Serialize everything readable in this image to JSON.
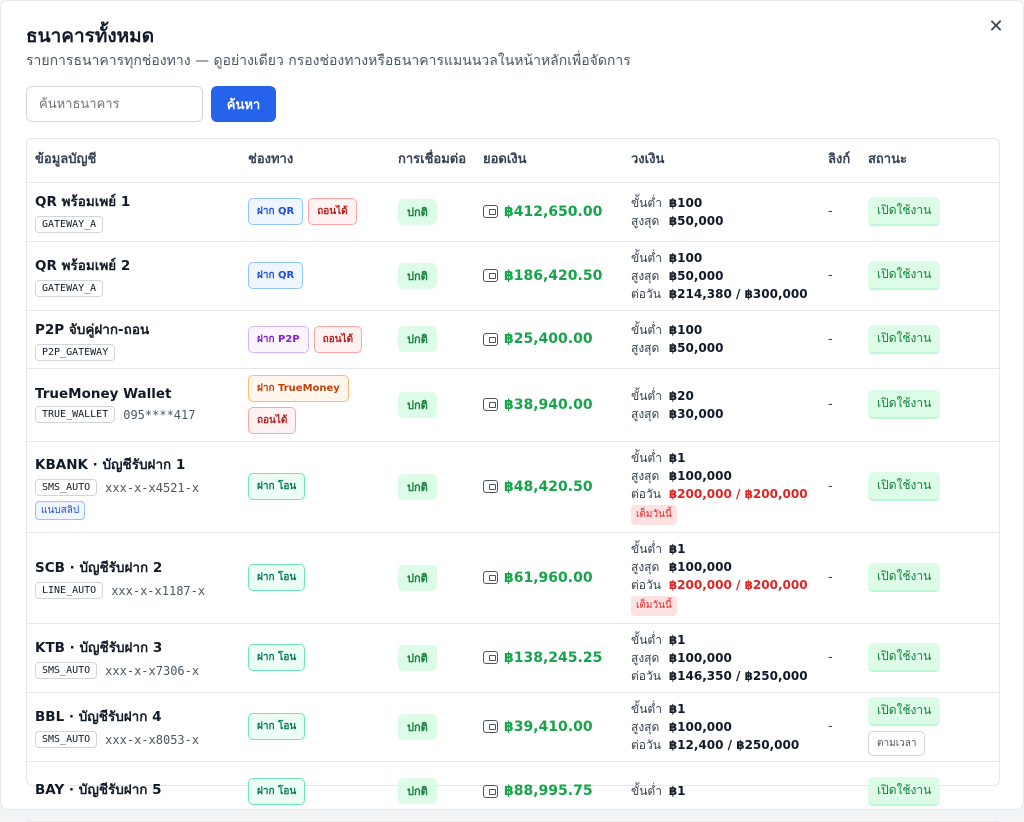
{
  "modal": {
    "title": "ธนาคารทั้งหมด",
    "subtitle": "รายการธนาคารทุกช่องทาง — ดูอย่างเดียว กรองช่องทางหรือธนาคารแมนนวลในหน้าหลักเพื่อจัดการ",
    "close_icon": "close-icon"
  },
  "search": {
    "placeholder": "ค้นหาธนาคาร",
    "value": "",
    "button_label": "ค้นหา"
  },
  "table": {
    "headers": [
      "ข้อมูลบัญชี",
      "ช่องทาง",
      "การเชื่อมต่อ",
      "ยอดเงิน",
      "วงเงิน",
      "ลิงก์",
      "สถานะ"
    ],
    "rows": [
      {
        "name": "QR พร้อมเพย์ 1",
        "gateway": "GATEWAY_A",
        "account": "",
        "slip": "",
        "channels": [
          {
            "label": "ฝาก QR",
            "kind": "qr"
          },
          {
            "label": "ถอนได้",
            "kind": "wd"
          }
        ],
        "connection": "ปกติ",
        "balance": "฿412,650.00",
        "min_label": "ขั้นต่ำ",
        "min": "฿100",
        "max_label": "สูงสุด",
        "max": "฿50,000",
        "daily_label": "",
        "daily": "",
        "daily_full": false,
        "full_label": "",
        "link": "-",
        "status": "เปิดใช้งาน",
        "schedule": ""
      },
      {
        "name": "QR พร้อมเพย์ 2",
        "gateway": "GATEWAY_A",
        "account": "",
        "slip": "",
        "channels": [
          {
            "label": "ฝาก QR",
            "kind": "qr"
          }
        ],
        "connection": "ปกติ",
        "balance": "฿186,420.50",
        "min_label": "ขั้นต่ำ",
        "min": "฿100",
        "max_label": "สูงสุด",
        "max": "฿50,000",
        "daily_label": "ต่อวัน",
        "daily": "฿214,380 / ฿300,000",
        "daily_full": false,
        "full_label": "",
        "link": "-",
        "status": "เปิดใช้งาน",
        "schedule": ""
      },
      {
        "name": "P2P จับคู่ฝาก-ถอน",
        "gateway": "P2P_GATEWAY",
        "account": "",
        "slip": "",
        "channels": [
          {
            "label": "ฝาก P2P",
            "kind": "p2p"
          },
          {
            "label": "ถอนได้",
            "kind": "wd"
          }
        ],
        "connection": "ปกติ",
        "balance": "฿25,400.00",
        "min_label": "ขั้นต่ำ",
        "min": "฿100",
        "max_label": "สูงสุด",
        "max": "฿50,000",
        "daily_label": "",
        "daily": "",
        "daily_full": false,
        "full_label": "",
        "link": "-",
        "status": "เปิดใช้งาน",
        "schedule": ""
      },
      {
        "name": "TrueMoney Wallet",
        "gateway": "TRUE_WALLET",
        "account": "095****417",
        "slip": "",
        "channels": [
          {
            "label": "ฝาก TrueMoney",
            "kind": "tm"
          },
          {
            "label": "ถอนได้",
            "kind": "wd"
          }
        ],
        "connection": "ปกติ",
        "balance": "฿38,940.00",
        "min_label": "ขั้นต่ำ",
        "min": "฿20",
        "max_label": "สูงสุด",
        "max": "฿30,000",
        "daily_label": "",
        "daily": "",
        "daily_full": false,
        "full_label": "",
        "link": "-",
        "status": "เปิดใช้งาน",
        "schedule": ""
      },
      {
        "name": "KBANK · บัญชีรับฝาก 1",
        "gateway": "SMS_AUTO",
        "account": "xxx-x-x4521-x",
        "slip": "แนบสลิป",
        "channels": [
          {
            "label": "ฝาก โอน",
            "kind": "tf"
          }
        ],
        "connection": "ปกติ",
        "balance": "฿48,420.50",
        "min_label": "ขั้นต่ำ",
        "min": "฿1",
        "max_label": "สูงสุด",
        "max": "฿100,000",
        "daily_label": "ต่อวัน",
        "daily": "฿200,000 / ฿200,000",
        "daily_full": true,
        "full_label": "เต็มวันนี้",
        "link": "-",
        "status": "เปิดใช้งาน",
        "schedule": ""
      },
      {
        "name": "SCB · บัญชีรับฝาก 2",
        "gateway": "LINE_AUTO",
        "account": "xxx-x-x1187-x",
        "slip": "",
        "channels": [
          {
            "label": "ฝาก โอน",
            "kind": "tf"
          }
        ],
        "connection": "ปกติ",
        "balance": "฿61,960.00",
        "min_label": "ขั้นต่ำ",
        "min": "฿1",
        "max_label": "สูงสุด",
        "max": "฿100,000",
        "daily_label": "ต่อวัน",
        "daily": "฿200,000 / ฿200,000",
        "daily_full": true,
        "full_label": "เต็มวันนี้",
        "link": "-",
        "status": "เปิดใช้งาน",
        "schedule": ""
      },
      {
        "name": "KTB · บัญชีรับฝาก 3",
        "gateway": "SMS_AUTO",
        "account": "xxx-x-x7306-x",
        "slip": "",
        "channels": [
          {
            "label": "ฝาก โอน",
            "kind": "tf"
          }
        ],
        "connection": "ปกติ",
        "balance": "฿138,245.25",
        "min_label": "ขั้นต่ำ",
        "min": "฿1",
        "max_label": "สูงสุด",
        "max": "฿100,000",
        "daily_label": "ต่อวัน",
        "daily": "฿146,350 / ฿250,000",
        "daily_full": false,
        "full_label": "",
        "link": "-",
        "status": "เปิดใช้งาน",
        "schedule": ""
      },
      {
        "name": "BBL · บัญชีรับฝาก 4",
        "gateway": "SMS_AUTO",
        "account": "xxx-x-x8053-x",
        "slip": "",
        "channels": [
          {
            "label": "ฝาก โอน",
            "kind": "tf"
          }
        ],
        "connection": "ปกติ",
        "balance": "฿39,410.00",
        "min_label": "ขั้นต่ำ",
        "min": "฿1",
        "max_label": "สูงสุด",
        "max": "฿100,000",
        "daily_label": "ต่อวัน",
        "daily": "฿12,400 / ฿250,000",
        "daily_full": false,
        "full_label": "",
        "link": "-",
        "status": "เปิดใช้งาน",
        "schedule": "ตามเวลา"
      },
      {
        "name": "BAY · บัญชีรับฝาก 5",
        "gateway": "",
        "account": "",
        "slip": "",
        "channels": [
          {
            "label": "ฝาก โอน",
            "kind": "tf"
          }
        ],
        "connection": "ปกติ",
        "balance": "฿88,995.75",
        "min_label": "ขั้นต่ำ",
        "min": "฿1",
        "max_label": "",
        "max": "",
        "daily_label": "",
        "daily": "",
        "daily_full": false,
        "full_label": "",
        "link": "",
        "status": "เปิดใช้งาน",
        "schedule": ""
      }
    ]
  },
  "icons": {
    "balance": "wallet-icon"
  },
  "colors": {
    "primary": "#2563eb",
    "success": "#16a34a",
    "danger": "#dc2626"
  }
}
